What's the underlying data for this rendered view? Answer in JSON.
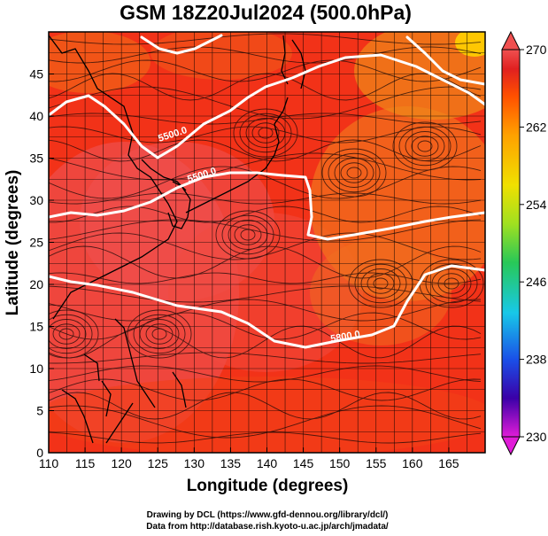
{
  "title": "GSM 18Z20Jul2024 (500.0hPa)",
  "x_axis": {
    "label": "Longitude (degrees)",
    "min": 110,
    "max": 170,
    "ticks": [
      "110",
      "115",
      "120",
      "125",
      "130",
      "135",
      "140",
      "145",
      "150",
      "155",
      "160",
      "165"
    ]
  },
  "y_axis": {
    "label": "Latitude  (degrees)",
    "min": 0,
    "max": 50,
    "ticks": [
      "0",
      "5",
      "10",
      "15",
      "20",
      "25",
      "30",
      "35",
      "40",
      "45"
    ]
  },
  "colorbar": {
    "ticks": [
      "270",
      "262",
      "254",
      "246",
      "238",
      "230"
    ],
    "min": 230,
    "max": 270,
    "colors": [
      "#e01cd8",
      "#3a00a8",
      "#1a50e8",
      "#18c8e8",
      "#28c858",
      "#a0e020",
      "#f0e000",
      "#ffa000",
      "#ff5000",
      "#e02020",
      "#f05050"
    ]
  },
  "contours": [
    {
      "label": "5500.0"
    },
    {
      "label": "5500.0"
    },
    {
      "label": "5800.0"
    }
  ],
  "credits": {
    "line1": "Drawing by DCL (https://www.gfd-dennou.org/library/dcl/)",
    "line2": "Data from http://database.rish.kyoto-u.ac.jp/arch/jmadata/"
  }
}
